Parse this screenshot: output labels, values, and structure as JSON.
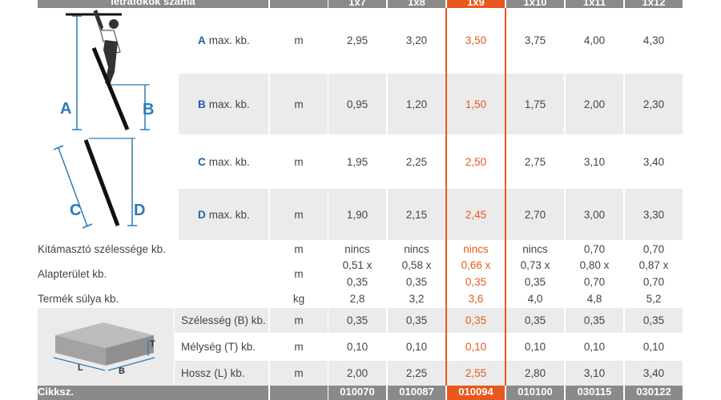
{
  "header": {
    "title": "létrafokok száma",
    "columns": [
      "1x7",
      "1x8",
      "1x9",
      "1x10",
      "1x11",
      "1x12"
    ]
  },
  "rows": [
    {
      "letter": "A",
      "label": "max. kb.",
      "unit": "m",
      "values": [
        "2,95",
        "3,20",
        "3,50",
        "3,75",
        "4,00",
        "4,30"
      ]
    },
    {
      "letter": "B",
      "label": "max. kb.",
      "unit": "m",
      "values": [
        "0,95",
        "1,20",
        "1,50",
        "1,75",
        "2,00",
        "2,30"
      ]
    },
    {
      "letter": "C",
      "label": "max. kb.",
      "unit": "m",
      "values": [
        "1,95",
        "2,25",
        "2,50",
        "2,75",
        "3,10",
        "3,40"
      ]
    },
    {
      "letter": "D",
      "label": "max. kb.",
      "unit": "m",
      "values": [
        "1,90",
        "2,15",
        "2,45",
        "2,70",
        "3,00",
        "3,30"
      ]
    }
  ],
  "plain_rows": [
    {
      "label": "Kitámasztó szélessége kb.",
      "unit": "m",
      "values": [
        "nincs",
        "nincs",
        "nincs",
        "nincs",
        "0,70",
        "0,70"
      ]
    },
    {
      "label": "Alapterület kb.",
      "unit": "m",
      "values": [
        [
          "0,51 x",
          "0,35"
        ],
        [
          "0,58 x",
          "0,35"
        ],
        [
          "0,66 x",
          "0,35"
        ],
        [
          "0,73 x",
          "0,35"
        ],
        [
          "0,80 x",
          "0,70"
        ],
        [
          "0,87 x",
          "0,70"
        ]
      ]
    },
    {
      "label": "Termék súlya kb.",
      "unit": "kg",
      "values": [
        "2,8",
        "3,2",
        "3,6",
        "4,0",
        "4,8",
        "5,2"
      ]
    }
  ],
  "dim_rows": [
    {
      "label": "Szélesség (B) kb.",
      "unit": "m",
      "values": [
        "0,35",
        "0,35",
        "0,35",
        "0,35",
        "0,35",
        "0,35"
      ]
    },
    {
      "label": "Mélység (T) kb.",
      "unit": "m",
      "values": [
        "0,10",
        "0,10",
        "0,10",
        "0,10",
        "0,10",
        "0,10"
      ]
    },
    {
      "label": "Hossz (L) kb.",
      "unit": "m",
      "values": [
        "2,00",
        "2,25",
        "2,55",
        "2,80",
        "3,10",
        "3,40"
      ]
    }
  ],
  "footer": {
    "label": "Cikksz.",
    "codes": [
      "010070",
      "010087",
      "010094",
      "010100",
      "030115",
      "030122"
    ]
  },
  "diagram": {
    "labels": [
      "A",
      "B",
      "C",
      "D"
    ]
  },
  "box_diagram": {
    "labels": [
      "T",
      "L",
      "B"
    ]
  },
  "colors": {
    "accent": "#e8581c",
    "header_bg": "#8a8a8a",
    "letter_blue": "#1d5fa8",
    "stripe": "#ebebeb"
  }
}
